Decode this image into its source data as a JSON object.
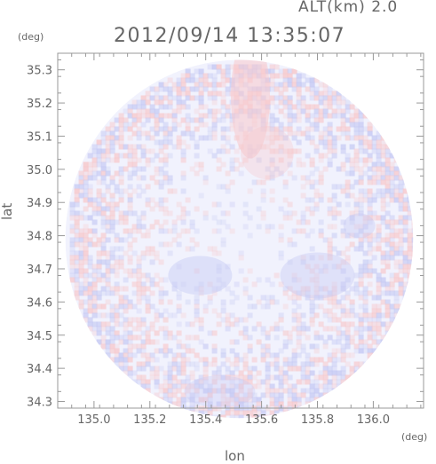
{
  "header": {
    "alt_label": "ALT(km) 2.0",
    "datetime": "2012/09/14 13:35:07"
  },
  "chart_data": {
    "type": "heatmap",
    "title": "2012/09/14 13:35:07",
    "xlabel": "lon",
    "ylabel": "lat",
    "x_unit": "(deg)",
    "y_unit": "(deg)",
    "xlim": [
      134.87,
      136.18
    ],
    "ylim": [
      34.28,
      35.35
    ],
    "x_ticks": [
      135.0,
      135.2,
      135.4,
      135.6,
      135.8,
      136.0
    ],
    "x_tick_labels": [
      "135.0",
      "135.2",
      "135.4",
      "135.6",
      "135.8",
      "136.0"
    ],
    "y_ticks": [
      34.3,
      34.4,
      34.5,
      34.6,
      34.7,
      34.8,
      34.9,
      35.0,
      35.1,
      35.2,
      35.3
    ],
    "y_tick_labels": [
      "34.3",
      "34.4",
      "34.5",
      "34.6",
      "34.7",
      "34.8",
      "34.9",
      "35.0",
      "35.1",
      "35.2",
      "35.3"
    ],
    "grid": false,
    "legend": "none",
    "radar_center": [
      135.52,
      34.79
    ],
    "radar_radius_deg_lat": 0.54,
    "colors": {
      "background": "#f1f2fd",
      "positive": "#f7c9cc",
      "negative": "#c5c9f3",
      "axis": "#999999",
      "text": "#666666"
    }
  }
}
